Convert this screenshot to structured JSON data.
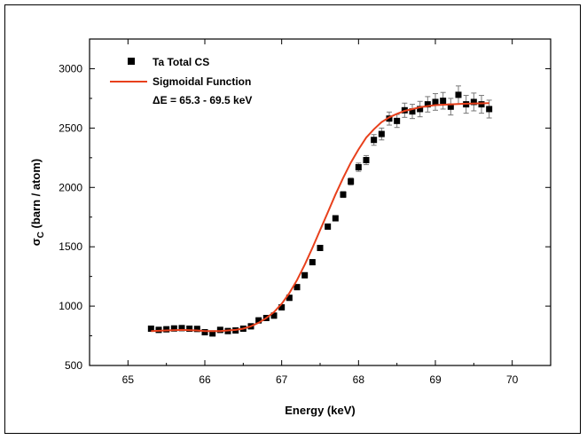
{
  "chart_data": {
    "type": "scatter",
    "title": "",
    "xlabel": "Energy (keV)",
    "ylabel_main": "σ",
    "ylabel_sub": "C",
    "ylabel_rest": " (barn / atom)",
    "xlim": [
      64.5,
      70.5
    ],
    "ylim": [
      500,
      3250
    ],
    "xticks": [
      65,
      66,
      67,
      68,
      69,
      70
    ],
    "yticks": [
      500,
      1000,
      1500,
      2000,
      2500,
      3000
    ],
    "legend": {
      "position": "top-left",
      "entries": [
        "Ta Total CS",
        "Sigmoidal Function"
      ],
      "annotation": "ΔE = 65.3 - 69.5 keV"
    },
    "colors": {
      "points": "#000000",
      "fit": "#e8401c",
      "error_bars": "#777777"
    },
    "series": [
      {
        "name": "Ta Total CS",
        "kind": "points",
        "x": [
          65.3,
          65.4,
          65.5,
          65.6,
          65.7,
          65.8,
          65.9,
          66.0,
          66.1,
          66.2,
          66.3,
          66.4,
          66.5,
          66.6,
          66.7,
          66.8,
          66.9,
          67.0,
          67.1,
          67.2,
          67.3,
          67.4,
          67.5,
          67.6,
          67.7,
          67.8,
          67.9,
          68.0,
          68.1,
          68.2,
          68.3,
          68.4,
          68.5,
          68.6,
          68.7,
          68.8,
          68.9,
          69.0,
          69.1,
          69.2,
          69.3,
          69.4,
          69.5,
          69.6,
          69.7
        ],
        "y": [
          810,
          800,
          805,
          812,
          815,
          810,
          808,
          780,
          770,
          800,
          790,
          795,
          810,
          830,
          880,
          900,
          920,
          990,
          1070,
          1160,
          1260,
          1370,
          1490,
          1670,
          1740,
          1940,
          2050,
          2170,
          2230,
          2400,
          2450,
          2580,
          2560,
          2650,
          2640,
          2660,
          2700,
          2720,
          2730,
          2680,
          2780,
          2700,
          2720,
          2700,
          2660
        ],
        "error": [
          22,
          22,
          22,
          22,
          22,
          22,
          22,
          22,
          22,
          22,
          22,
          22,
          22,
          22,
          22,
          22,
          22,
          22,
          22,
          22,
          22,
          22,
          22,
          22,
          22,
          25,
          30,
          35,
          38,
          45,
          50,
          55,
          55,
          60,
          60,
          65,
          65,
          70,
          70,
          70,
          75,
          75,
          75,
          75,
          75
        ]
      },
      {
        "name": "Sigmoidal Function",
        "kind": "line",
        "x": [
          65.3,
          65.5,
          65.7,
          65.9,
          66.0,
          66.1,
          66.2,
          66.3,
          66.4,
          66.5,
          66.6,
          66.7,
          66.8,
          66.9,
          67.0,
          67.1,
          67.2,
          67.3,
          67.4,
          67.5,
          67.6,
          67.7,
          67.8,
          67.9,
          68.0,
          68.1,
          68.2,
          68.3,
          68.4,
          68.5,
          68.6,
          68.7,
          68.8,
          68.9,
          69.0,
          69.2,
          69.4,
          69.6,
          69.7
        ],
        "y": [
          790,
          795,
          800,
          795,
          790,
          790,
          790,
          795,
          800,
          810,
          830,
          860,
          900,
          950,
          1020,
          1110,
          1220,
          1350,
          1490,
          1640,
          1790,
          1940,
          2080,
          2210,
          2320,
          2420,
          2490,
          2550,
          2590,
          2620,
          2645,
          2660,
          2675,
          2685,
          2693,
          2700,
          2705,
          2708,
          2710
        ]
      }
    ]
  }
}
